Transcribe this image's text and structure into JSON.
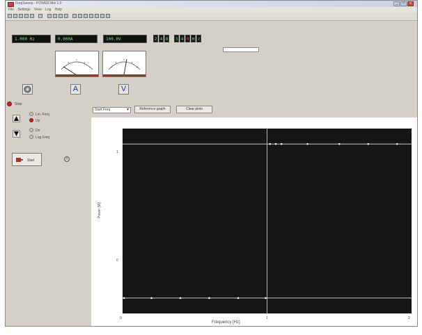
{
  "window": {
    "title": "FreqSweep - POWER Mix 1.0",
    "buttons": {
      "minimize": "_",
      "maximize": "□",
      "close": "×"
    }
  },
  "menu": [
    "File",
    "Settings",
    "View",
    "Log",
    "Help"
  ],
  "readouts": {
    "freq": "1.000 Hz",
    "current": "0.000A",
    "voltage": "100.0V",
    "digits": [
      "2",
      "4",
      "8",
      "3",
      "4",
      "0",
      "H",
      "z"
    ]
  },
  "meters": {
    "amp_label": "A",
    "volt_label": "V"
  },
  "status": {
    "label": "Stop"
  },
  "run_button": {
    "label": "Start"
  },
  "sweep_options": [
    "Lin. Freq",
    "Up",
    "Dn",
    "Log Freq"
  ],
  "controls": {
    "mode_select": "Start Freq",
    "reference_button": "Reference graph",
    "clear_button": "Clear plots"
  },
  "colors": {
    "plot_bg": "#151515",
    "plot_grid": "#dedede",
    "lcd_text": "#8fd88f",
    "accent_red": "#d42020"
  },
  "chart_data": {
    "type": "scatter",
    "xlabel": "Frequency [Hz]",
    "ylabel": "Power [W]",
    "xlim": [
      0,
      2
    ],
    "ylim": [
      -0.1,
      1.1
    ],
    "x_ticks": [
      "0",
      "1",
      "2"
    ],
    "y_ticks": [
      "0",
      "1"
    ],
    "grid": true,
    "series": [
      {
        "points": [
          [
            0.01,
            0
          ],
          [
            0.2,
            0
          ],
          [
            0.4,
            0
          ],
          [
            0.6,
            0
          ],
          [
            0.8,
            0
          ],
          [
            0.99,
            0
          ],
          [
            1.02,
            1
          ],
          [
            1.06,
            1
          ],
          [
            1.1,
            1
          ],
          [
            1.28,
            1
          ],
          [
            1.5,
            1
          ],
          [
            1.7,
            1
          ],
          [
            1.9,
            1
          ]
        ]
      }
    ]
  }
}
